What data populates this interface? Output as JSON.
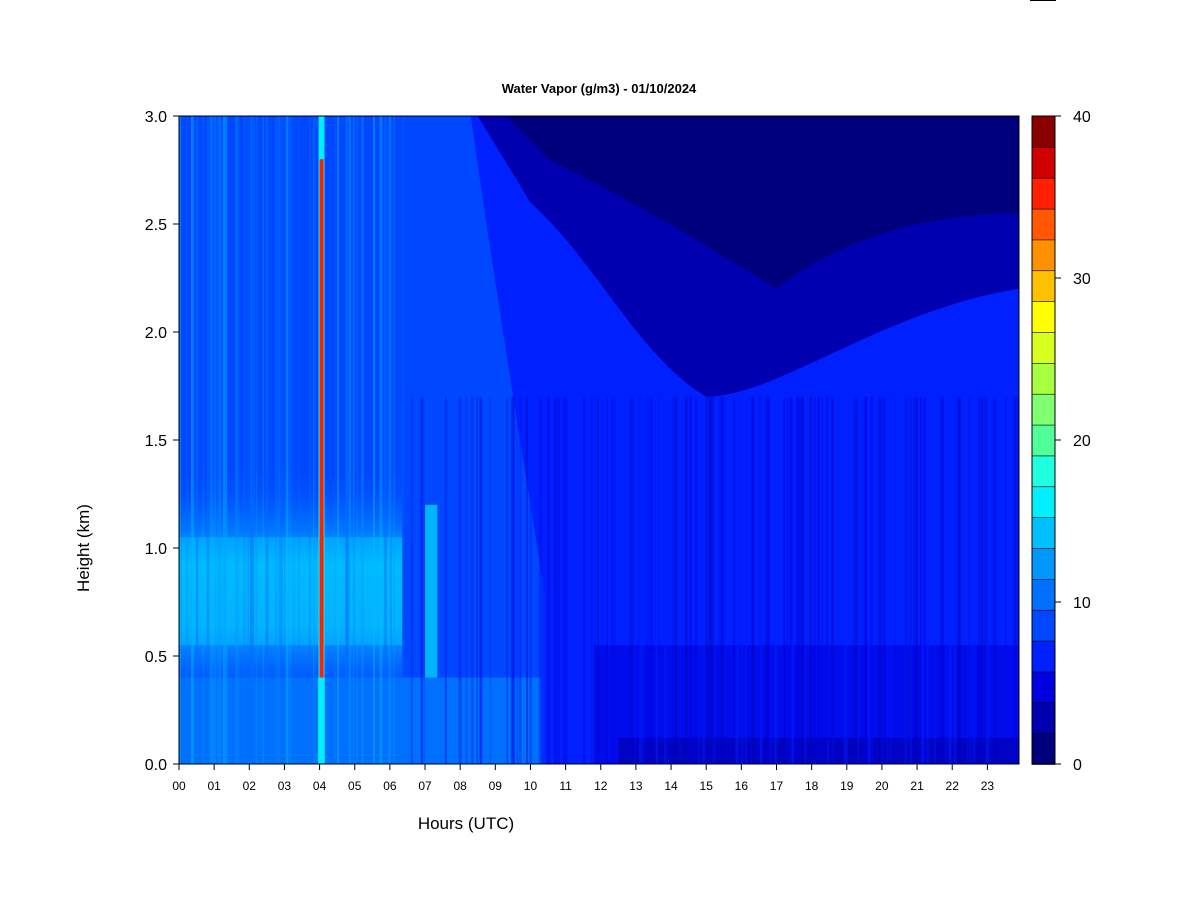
{
  "chart_data": {
    "type": "heatmap",
    "title": "Water Vapor (g/m3) - 01/10/2024",
    "xlabel": "Hours (UTC)",
    "ylabel": "Height (km)",
    "x_ticks": [
      "00",
      "01",
      "02",
      "03",
      "04",
      "05",
      "06",
      "07",
      "08",
      "09",
      "10",
      "11",
      "12",
      "13",
      "14",
      "15",
      "16",
      "17",
      "18",
      "19",
      "20",
      "21",
      "22",
      "23"
    ],
    "y_ticks": [
      "0.0",
      "0.5",
      "1.0",
      "1.5",
      "2.0",
      "2.5",
      "3.0"
    ],
    "xlim": [
      0,
      23.9
    ],
    "ylim": [
      0,
      3.0
    ],
    "colorbar": {
      "range": [
        0,
        40
      ],
      "ticks": [
        "0",
        "10",
        "20",
        "30",
        "40"
      ],
      "levels": [
        0,
        2,
        4,
        6,
        8,
        10,
        12,
        14,
        16,
        18,
        20,
        22,
        24,
        26,
        28,
        30,
        32,
        34,
        36,
        38,
        40
      ],
      "colors": [
        "#00007f",
        "#0000b0",
        "#0000e0",
        "#0020ff",
        "#0048ff",
        "#0070ff",
        "#0098ff",
        "#00c0ff",
        "#00f0ff",
        "#20ffe0",
        "#50ff98",
        "#80ff70",
        "#a8ff40",
        "#d8ff20",
        "#ffff00",
        "#ffc000",
        "#ff9000",
        "#ff5800",
        "#ff2000",
        "#d00000",
        "#8a0000"
      ]
    },
    "grid": false,
    "series": [
      {
        "hour_range": [
          0,
          6.3
        ],
        "surface_value": 10,
        "peak_height_km": 0.85,
        "peak_value": 16,
        "top_value": 8
      },
      {
        "hour": 4.0,
        "peak_value": 37,
        "height_range": [
          0.4,
          2.8
        ]
      },
      {
        "hour_range": [
          7.0,
          7.3
        ],
        "peak_value": 16,
        "height_range": [
          0.4,
          1.2
        ]
      },
      {
        "hour_range": [
          7.5,
          10.3
        ],
        "surface_value": 9,
        "top_value": 4
      },
      {
        "hour_range": [
          10.3,
          23.9
        ],
        "surface_value": 6,
        "mid_value": 7,
        "top_value": 2
      }
    ]
  }
}
